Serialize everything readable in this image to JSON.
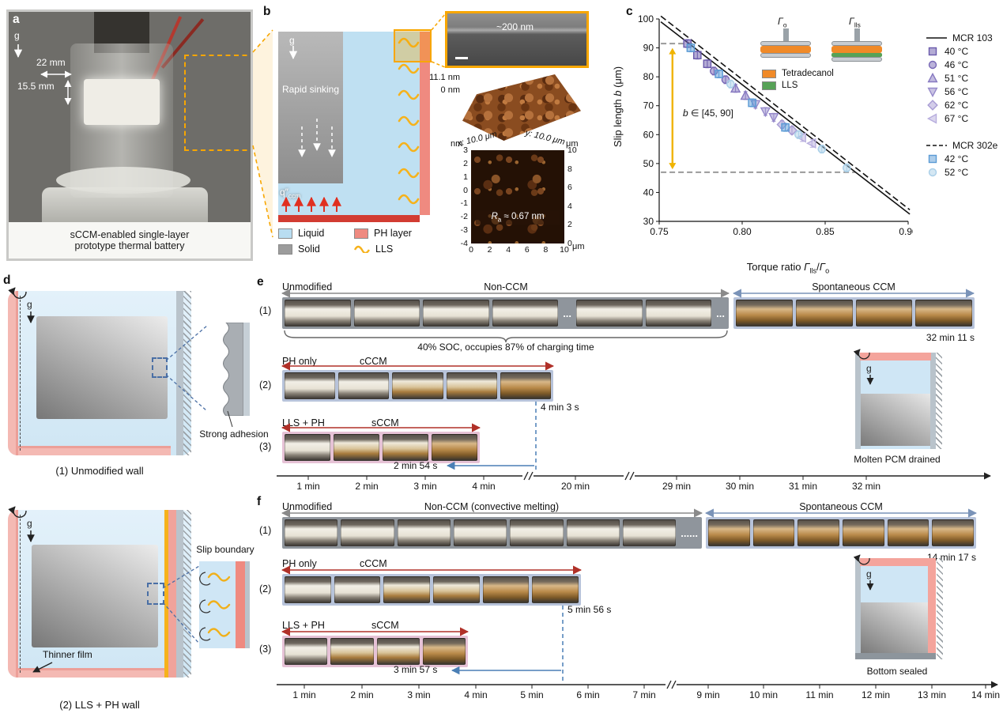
{
  "panel_a": {
    "label": "a",
    "g": "g",
    "dim_width": "22 mm",
    "dim_height": "15.5 mm",
    "caption_line1": "sCCM-enabled single-layer",
    "caption_line2": "prototype thermal battery"
  },
  "panel_b": {
    "label": "b",
    "g": "g",
    "sinking": "Rapid sinking",
    "flux_var": "q″",
    "flux_sub": "ccm",
    "sem_thickness": "~200 nm",
    "afm3d_max": "11.1 nm",
    "afm3d_min": "0 nm",
    "afm3d_x": "x: 10.0 μm",
    "afm3d_y": "y: 10.0 μm",
    "rough_var": "R",
    "rough_sub": "a",
    "rough_rest": " ≈ 0.67 nm",
    "afm2d": {
      "unit_left": "nm",
      "unit_right": "μm",
      "unit_bottom": "μm",
      "left_ticks": [
        "3",
        "2",
        "1",
        "0",
        "-1",
        "-2",
        "-3",
        "-4"
      ],
      "right_ticks": [
        "10",
        "8",
        "6",
        "4",
        "2",
        "0"
      ],
      "bottom_ticks": [
        "0",
        "2",
        "4",
        "6",
        "8",
        "10"
      ]
    },
    "legend": [
      {
        "label": "Liquid",
        "color": "#b9ddf1",
        "type": "swatch"
      },
      {
        "label": "PH layer",
        "color": "#ef8a80",
        "type": "swatch"
      },
      {
        "label": "Solid",
        "color": "#9c9c9c",
        "type": "swatch"
      },
      {
        "label": "LLS",
        "color": "#f6b21b",
        "type": "wave"
      }
    ]
  },
  "panel_c": {
    "label": "c",
    "ylabel_pre": "Slip length ",
    "ylabel_var": "b",
    "ylabel_post": " (μm)",
    "xlabel_pre": "Torque ratio ",
    "xlabel_g1": "Γ",
    "xlabel_sub1": "lls",
    "xlabel_mid": "/",
    "xlabel_g2": "Γ",
    "xlabel_sub2": "o",
    "annotation_var": "b",
    "annotation_rest": " ∈ [45, 90]",
    "legend1_title": "MCR 103",
    "legend1": [
      {
        "label": "40 °C",
        "marker": "square",
        "color": "#6a5aac"
      },
      {
        "label": "46 °C",
        "marker": "circle",
        "color": "#7868b6"
      },
      {
        "label": "51 °C",
        "marker": "triangle",
        "color": "#8678c0"
      },
      {
        "label": "56 °C",
        "marker": "triangle-down",
        "color": "#968aca"
      },
      {
        "label": "62 °C",
        "marker": "diamond",
        "color": "#a89cd4"
      },
      {
        "label": "67 °C",
        "marker": "triangle-left",
        "color": "#b8aede"
      }
    ],
    "legend2_title": "MCR 302e",
    "legend2": [
      {
        "label": "42 °C",
        "marker": "square",
        "color": "#5b9bd5"
      },
      {
        "label": "52 °C",
        "marker": "circle",
        "color": "#a9cfe8"
      }
    ],
    "inset": {
      "left_var": "Γ",
      "left_sub": "o",
      "right_var": "Γ",
      "right_sub": "lls",
      "legend": [
        {
          "label": "Tetradecanol",
          "color": "#f08a28"
        },
        {
          "label": "LLS",
          "color": "#57a257"
        }
      ]
    }
  },
  "chart_data": {
    "type": "scatter",
    "title": "",
    "xlabel": "Torque ratio Γlls/Γo",
    "ylabel": "Slip length b (μm)",
    "xlim": [
      0.75,
      0.9
    ],
    "ylim": [
      30,
      100
    ],
    "xticks": [
      0.75,
      0.8,
      0.85,
      0.9
    ],
    "yticks": [
      30,
      40,
      50,
      60,
      70,
      80,
      90,
      100
    ],
    "grid": false,
    "legend_position": "right",
    "lines": [
      {
        "name": "MCR 103",
        "style": "solid",
        "color": "#111111",
        "points": [
          [
            0.751,
            99
          ],
          [
            0.901,
            32.5
          ]
        ]
      },
      {
        "name": "MCR 302e",
        "style": "dashed",
        "color": "#111111",
        "points": [
          [
            0.751,
            101
          ],
          [
            0.901,
            34
          ]
        ]
      }
    ],
    "ref_lines": [
      {
        "y": 91.5,
        "x0": 0.751,
        "x1": 0.771,
        "style": "dashed",
        "color": "#9a9a9a"
      },
      {
        "y": 47,
        "x0": 0.751,
        "x1": 0.868,
        "style": "dashed",
        "color": "#9a9a9a"
      }
    ],
    "annotation": {
      "text": "b ∈ [45, 90]",
      "arrow_x": 0.758,
      "arrow_y0": 48,
      "arrow_y1": 90,
      "color": "#f0b400"
    },
    "series": [
      {
        "name": "40 °C (MCR 103)",
        "marker": "square",
        "color": "#6a5aac",
        "points": [
          [
            0.767,
            91.5
          ],
          [
            0.773,
            87.5
          ],
          [
            0.779,
            84.5
          ]
        ]
      },
      {
        "name": "46 °C (MCR 103)",
        "marker": "circle",
        "color": "#7868b6",
        "points": [
          [
            0.783,
            82
          ],
          [
            0.79,
            79
          ]
        ]
      },
      {
        "name": "51 °C (MCR 103)",
        "marker": "triangle",
        "color": "#8678c0",
        "points": [
          [
            0.796,
            76
          ],
          [
            0.802,
            73.5
          ]
        ]
      },
      {
        "name": "56 °C (MCR 103)",
        "marker": "triangle-down",
        "color": "#968aca",
        "points": [
          [
            0.808,
            70.5
          ],
          [
            0.814,
            68
          ],
          [
            0.819,
            66
          ]
        ]
      },
      {
        "name": "62 °C (MCR 103)",
        "marker": "diamond",
        "color": "#a89cd4",
        "points": [
          [
            0.824,
            63.5
          ],
          [
            0.83,
            61.5
          ]
        ]
      },
      {
        "name": "67 °C (MCR 103)",
        "marker": "triangle-left",
        "color": "#b8aede",
        "points": [
          [
            0.836,
            59
          ],
          [
            0.842,
            57
          ]
        ]
      },
      {
        "name": "42 °C (MCR 302e)",
        "marker": "square",
        "color": "#5b9bd5",
        "points": [
          [
            0.769,
            90
          ],
          [
            0.786,
            81
          ],
          [
            0.806,
            71
          ],
          [
            0.826,
            62.5
          ]
        ]
      },
      {
        "name": "52 °C (MCR 302e)",
        "marker": "circle",
        "color": "#a9cfe8",
        "points": [
          [
            0.793,
            77.5
          ],
          [
            0.834,
            60
          ],
          [
            0.848,
            55
          ],
          [
            0.863,
            48.5
          ]
        ]
      }
    ]
  },
  "panel_d": {
    "label": "d",
    "wall1": {
      "g": "g",
      "caption": "(1) Unmodified wall",
      "inset_label": "Strong adhesion"
    },
    "wall2": {
      "g": "g",
      "caption": "(2) LLS + PH wall",
      "inset_label": "Slip boundary",
      "film": "Thinner film"
    }
  },
  "panel_e": {
    "label": "e",
    "row1": {
      "num": "(1)",
      "name": "Unmodified",
      "phase1": "Non-CCM",
      "phase2": "Spontaneous CCM",
      "end_time": "32 min 11 s",
      "dots": "...",
      "brace_note": "40% SOC, occupies 87% of charging time"
    },
    "row2": {
      "num": "(2)",
      "name": "PH only",
      "phase": "cCCM",
      "end_time": "4 min 3 s"
    },
    "row3": {
      "num": "(3)",
      "name": "LLS + PH",
      "phase": "sCCM",
      "end_time": "2 min 54 s"
    },
    "inset": {
      "g": "g",
      "caption": "Molten PCM drained"
    },
    "axis": {
      "ticks": [
        "1 min",
        "2 min",
        "3 min",
        "4 min",
        "20 min",
        "29 min",
        "30 min",
        "31 min",
        "32 min"
      ],
      "break_mark": "//"
    }
  },
  "panel_f": {
    "label": "f",
    "row1": {
      "num": "(1)",
      "name": "Unmodified",
      "phase1": "Non-CCM (convective melting)",
      "phase2": "Spontaneous CCM",
      "end_time": "14 min 17 s",
      "dots": "......"
    },
    "row2": {
      "num": "(2)",
      "name": "PH only",
      "phase": "cCCM",
      "end_time": "5 min 56 s"
    },
    "row3": {
      "num": "(3)",
      "name": "LLS + PH",
      "phase": "sCCM",
      "end_time": "3 min 57 s"
    },
    "inset": {
      "g": "g",
      "caption": "Bottom sealed"
    },
    "axis": {
      "ticks": [
        "1 min",
        "2 min",
        "3 min",
        "4 min",
        "5 min",
        "6 min",
        "7 min",
        "9 min",
        "10 min",
        "11 min",
        "12 min",
        "13 min",
        "14 min"
      ],
      "break_mark": "//"
    }
  }
}
